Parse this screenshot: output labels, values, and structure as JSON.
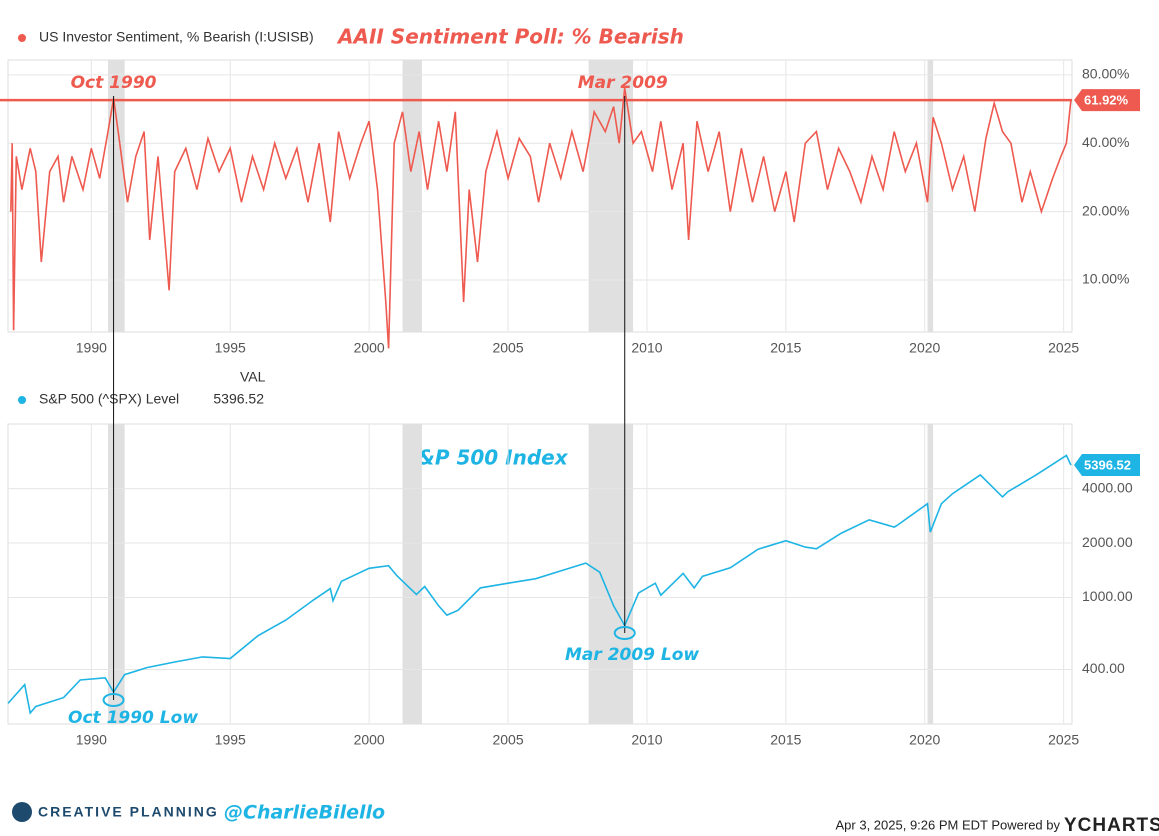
{
  "chart_data": [
    {
      "type": "line",
      "scale": "log",
      "grid": true,
      "legend": "US Investor Sentiment, % Bearish (I:USISB)",
      "title": "AAII Sentiment Poll: % Bearish",
      "xlim": [
        1987,
        2025.3
      ],
      "ylim": [
        5.9,
        93
      ],
      "xticks": [
        1990,
        1995,
        2000,
        2005,
        2010,
        2015,
        2020,
        2025
      ],
      "yticks": [
        {
          "value": 10,
          "label": "10.00%"
        },
        {
          "value": 20,
          "label": "20.00%"
        },
        {
          "value": 40,
          "label": "40.00%"
        },
        {
          "value": 80,
          "label": "80.00%"
        }
      ],
      "shaded_periods": [
        [
          1990.6,
          1991.2
        ],
        [
          2001.2,
          2001.9
        ],
        [
          2007.9,
          2009.5
        ],
        [
          2020.1,
          2020.3
        ]
      ],
      "events": [
        {
          "label": "Oct 1990",
          "x": 1990.8
        },
        {
          "label": "Mar 2009",
          "x": 2009.2
        }
      ],
      "series": [
        {
          "name": "US Investor Sentiment, % Bearish (I:USISB)",
          "color": "#ee5a4f",
          "x": [
            1987.1,
            1987.15,
            1987.2,
            1987.3,
            1987.5,
            1987.8,
            1988.0,
            1988.2,
            1988.5,
            1988.8,
            1989.0,
            1989.3,
            1989.7,
            1990.0,
            1990.3,
            1990.6,
            1990.8,
            1991.0,
            1991.3,
            1991.6,
            1991.9,
            1992.1,
            1992.4,
            1992.8,
            1993.0,
            1993.4,
            1993.8,
            1994.2,
            1994.6,
            1995.0,
            1995.4,
            1995.8,
            1996.2,
            1996.6,
            1997.0,
            1997.4,
            1997.8,
            1998.2,
            1998.6,
            1998.9,
            1999.3,
            1999.7,
            2000.0,
            2000.3,
            2000.6,
            2000.7,
            2000.9,
            2001.2,
            2001.5,
            2001.8,
            2002.1,
            2002.5,
            2002.8,
            2003.1,
            2003.4,
            2003.6,
            2003.9,
            2004.2,
            2004.6,
            2005.0,
            2005.4,
            2005.8,
            2006.1,
            2006.5,
            2006.9,
            2007.3,
            2007.7,
            2008.1,
            2008.5,
            2008.8,
            2009.0,
            2009.2,
            2009.5,
            2009.8,
            2010.2,
            2010.5,
            2010.9,
            2011.3,
            2011.5,
            2011.8,
            2012.2,
            2012.6,
            2013.0,
            2013.4,
            2013.8,
            2014.2,
            2014.6,
            2015.0,
            2015.3,
            2015.7,
            2016.1,
            2016.5,
            2016.9,
            2017.3,
            2017.7,
            2018.1,
            2018.5,
            2018.9,
            2019.3,
            2019.7,
            2020.1,
            2020.3,
            2020.6,
            2021.0,
            2021.4,
            2021.8,
            2022.2,
            2022.5,
            2022.8,
            2023.1,
            2023.5,
            2023.8,
            2024.2,
            2024.6,
            2024.9,
            2025.1,
            2025.26
          ],
          "values": [
            20,
            40,
            6,
            35,
            25,
            38,
            30,
            12,
            30,
            35,
            22,
            35,
            25,
            38,
            28,
            45,
            63,
            42,
            22,
            35,
            45,
            15,
            35,
            9,
            30,
            38,
            25,
            42,
            30,
            38,
            22,
            35,
            25,
            40,
            28,
            38,
            22,
            40,
            18,
            45,
            28,
            40,
            50,
            25,
            8,
            5,
            40,
            55,
            30,
            45,
            25,
            50,
            30,
            55,
            8,
            25,
            12,
            30,
            45,
            28,
            42,
            35,
            22,
            40,
            28,
            45,
            30,
            55,
            45,
            58,
            40,
            70,
            40,
            45,
            30,
            50,
            25,
            40,
            15,
            50,
            30,
            45,
            20,
            38,
            22,
            35,
            20,
            30,
            18,
            40,
            45,
            25,
            38,
            30,
            22,
            35,
            25,
            45,
            30,
            40,
            22,
            52,
            40,
            25,
            35,
            20,
            42,
            60,
            45,
            40,
            22,
            30,
            20,
            28,
            35,
            40,
            61.92
          ],
          "value_labels": [
            null,
            null,
            null,
            null,
            null,
            null,
            null,
            null,
            null,
            null,
            null,
            null,
            null,
            null,
            null,
            null,
            null,
            null,
            null,
            null,
            null,
            null,
            null,
            null,
            null,
            null,
            null,
            null,
            null,
            null,
            null,
            null,
            null,
            null,
            null,
            null,
            null,
            null,
            null,
            null,
            null,
            null,
            null,
            null,
            null,
            null,
            null,
            null,
            null,
            null,
            null,
            null,
            null,
            null,
            null,
            null,
            null,
            null,
            null,
            null,
            null,
            null,
            null,
            null,
            null,
            null,
            null,
            null,
            null,
            null,
            null,
            null,
            null,
            null,
            null,
            null,
            null,
            null,
            null,
            null,
            null,
            null,
            null,
            null,
            null,
            null,
            null,
            null,
            null,
            null,
            null,
            null,
            null,
            null,
            null,
            null,
            null,
            null,
            null,
            null,
            null,
            null,
            null,
            null,
            null,
            null,
            null,
            null,
            null,
            null,
            null,
            null,
            null,
            null,
            null,
            null,
            "61.92%"
          ]
        }
      ]
    },
    {
      "type": "line",
      "scale": "log",
      "grid": true,
      "legend": "S&P 500 (^SPX) Level",
      "value_header": "VAL",
      "title": "S&P 500 Index",
      "xlim": [
        1987,
        2025.3
      ],
      "ylim": [
        200,
        9100
      ],
      "xticks": [
        1990,
        1995,
        2000,
        2005,
        2010,
        2015,
        2020,
        2025
      ],
      "yticks": [
        {
          "value": 400,
          "label": "400.00"
        },
        {
          "value": 1000,
          "label": "1000.00"
        },
        {
          "value": 2000,
          "label": "2000.00"
        },
        {
          "value": 4000,
          "label": "4000.00"
        }
      ],
      "shaded_periods": [
        [
          1990.6,
          1991.2
        ],
        [
          2001.2,
          2001.9
        ],
        [
          2007.9,
          2009.5
        ],
        [
          2020.1,
          2020.3
        ]
      ],
      "events": [
        {
          "label": "Oct 1990 Low",
          "x": 1990.8
        },
        {
          "label": "Mar 2009 Low",
          "x": 2009.2
        }
      ],
      "series": [
        {
          "name": "S&P 500 (^SPX) Level",
          "color": "#1eb4e4",
          "x": [
            1987.0,
            1987.6,
            1987.8,
            1988.0,
            1989.0,
            1989.6,
            1990.5,
            1990.8,
            1991.2,
            1992.0,
            1993.0,
            1994.0,
            1995.0,
            1996.0,
            1997.0,
            1998.0,
            1998.6,
            1998.7,
            1999.0,
            2000.0,
            2000.7,
            2001.0,
            2001.7,
            2002.0,
            2002.5,
            2002.8,
            2003.2,
            2004.0,
            2005.0,
            2006.0,
            2007.0,
            2007.8,
            2008.3,
            2008.8,
            2009.2,
            2009.7,
            2010.3,
            2010.5,
            2011.3,
            2011.7,
            2012.0,
            2013.0,
            2014.0,
            2015.0,
            2015.7,
            2016.1,
            2017.0,
            2018.0,
            2018.9,
            2019.0,
            2020.1,
            2020.2,
            2020.6,
            2021.0,
            2022.0,
            2022.8,
            2023.0,
            2024.0,
            2025.1,
            2025.26
          ],
          "values": [
            260,
            330,
            230,
            250,
            280,
            350,
            360,
            300,
            375,
            410,
            440,
            470,
            460,
            615,
            750,
            970,
            1120,
            960,
            1230,
            1450,
            1500,
            1320,
            1040,
            1150,
            900,
            800,
            850,
            1130,
            1200,
            1270,
            1420,
            1550,
            1380,
            900,
            700,
            1060,
            1200,
            1030,
            1360,
            1130,
            1310,
            1460,
            1850,
            2060,
            1900,
            1860,
            2270,
            2690,
            2450,
            2500,
            3300,
            2300,
            3300,
            3750,
            4760,
            3600,
            3850,
            4750,
            6100,
            5396.52
          ]
        }
      ]
    }
  ],
  "footer": {
    "brand": "CREATIVE PLANNING",
    "handle": "@CharlieBilello",
    "timestamp": "Apr 3, 2025, 9:26 PM EDT Powered by",
    "source": "YCHARTS"
  }
}
